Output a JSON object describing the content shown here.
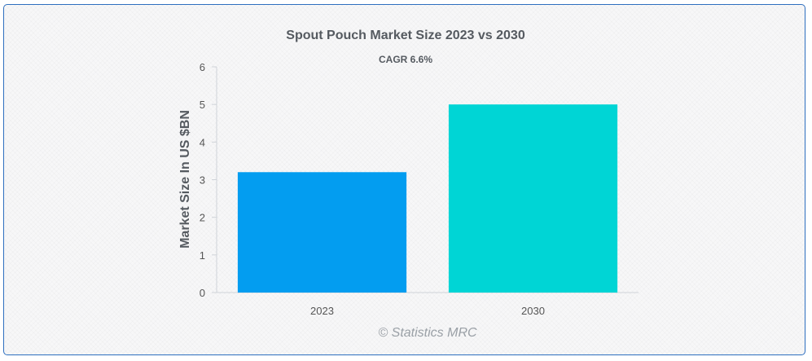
{
  "chart_data": {
    "type": "bar",
    "title": "Spout Pouch Market Size 2023 vs 2030",
    "subtitle": "CAGR 6.6%",
    "xlabel": "",
    "ylabel": "Market Size In US $BN",
    "categories": [
      "2023",
      "2030"
    ],
    "values": [
      3.2,
      5.0
    ],
    "colors": [
      "#039df0",
      "#00d5d5"
    ],
    "ylim": [
      0,
      6
    ],
    "yticks": [
      0,
      1,
      2,
      3,
      4,
      5,
      6
    ],
    "grid": false,
    "legend": "none"
  },
  "credit": "© Statistics MRC"
}
